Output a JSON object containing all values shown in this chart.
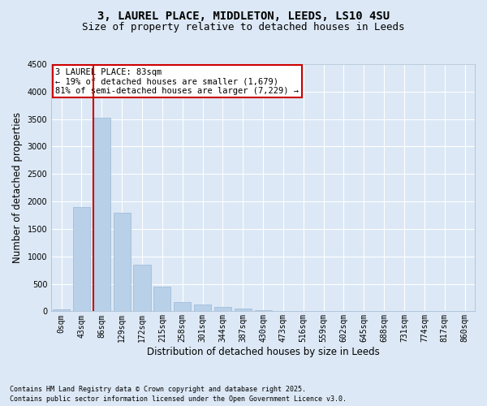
{
  "title_line1": "3, LAUREL PLACE, MIDDLETON, LEEDS, LS10 4SU",
  "title_line2": "Size of property relative to detached houses in Leeds",
  "xlabel": "Distribution of detached houses by size in Leeds",
  "ylabel": "Number of detached properties",
  "categories": [
    "0sqm",
    "43sqm",
    "86sqm",
    "129sqm",
    "172sqm",
    "215sqm",
    "258sqm",
    "301sqm",
    "344sqm",
    "387sqm",
    "430sqm",
    "473sqm",
    "516sqm",
    "559sqm",
    "602sqm",
    "645sqm",
    "688sqm",
    "731sqm",
    "774sqm",
    "817sqm",
    "860sqm"
  ],
  "values": [
    30,
    1900,
    3520,
    1800,
    850,
    450,
    170,
    120,
    80,
    50,
    20,
    5,
    0,
    0,
    0,
    0,
    0,
    0,
    0,
    0,
    0
  ],
  "bar_color": "#b8d0e8",
  "bar_edge_color": "#9ab8d8",
  "vline_color": "#cc0000",
  "vline_index": 1.575,
  "ylim": [
    0,
    4500
  ],
  "yticks": [
    0,
    500,
    1000,
    1500,
    2000,
    2500,
    3000,
    3500,
    4000,
    4500
  ],
  "annotation_text": "3 LAUREL PLACE: 83sqm\n← 19% of detached houses are smaller (1,679)\n81% of semi-detached houses are larger (7,229) →",
  "annotation_box_facecolor": "#ffffff",
  "annotation_box_edgecolor": "#cc0000",
  "footnote1": "Contains HM Land Registry data © Crown copyright and database right 2025.",
  "footnote2": "Contains public sector information licensed under the Open Government Licence v3.0.",
  "background_color": "#dce8f5",
  "plot_background_color": "#dce8f5",
  "grid_color": "#ffffff",
  "title1_fontsize": 10,
  "title2_fontsize": 9,
  "axis_label_fontsize": 8.5,
  "tick_fontsize": 7,
  "annotation_fontsize": 7.5,
  "footnote_fontsize": 6
}
